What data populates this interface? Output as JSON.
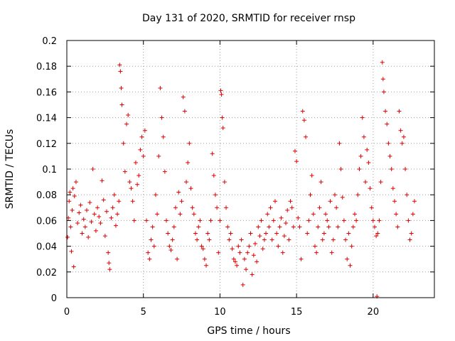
{
  "chart_data": {
    "type": "scatter",
    "title": "Day 131 of 2020, SRMTID for receiver rnsp",
    "xlabel": "GPS time / hours",
    "ylabel": "SRMTID / TECUs",
    "xlim": [
      0,
      24
    ],
    "ylim": [
      0,
      0.2
    ],
    "xticks": [
      0,
      5,
      10,
      15,
      20
    ],
    "xtick_labels": [
      "0",
      "5",
      "10",
      "15",
      "20"
    ],
    "yticks": [
      0,
      0.02,
      0.04,
      0.06,
      0.08,
      0.1,
      0.12,
      0.14,
      0.16,
      0.18,
      0.2
    ],
    "ytick_labels": [
      "0",
      "0.02",
      "0.04",
      "0.06",
      "0.08",
      "0.1",
      "0.12",
      "0.14",
      "0.16",
      "0.18",
      "0.2"
    ],
    "grid": true,
    "marker": "+",
    "color": "#e00000",
    "series": [
      {
        "name": "SRMTID",
        "points": [
          [
            0.05,
            0.047
          ],
          [
            0.1,
            0.062
          ],
          [
            0.15,
            0.075
          ],
          [
            0.2,
            0.082
          ],
          [
            0.25,
            0.055
          ],
          [
            0.3,
            0.036
          ],
          [
            0.35,
            0.068
          ],
          [
            0.4,
            0.085
          ],
          [
            0.45,
            0.024
          ],
          [
            0.5,
            0.079
          ],
          [
            0.6,
            0.09
          ],
          [
            0.7,
            0.058
          ],
          [
            0.8,
            0.066
          ],
          [
            0.9,
            0.072
          ],
          [
            1.0,
            0.05
          ],
          [
            1.1,
            0.061
          ],
          [
            1.2,
            0.055
          ],
          [
            1.3,
            0.068
          ],
          [
            1.4,
            0.047
          ],
          [
            1.5,
            0.074
          ],
          [
            1.6,
            0.059
          ],
          [
            1.7,
            0.1
          ],
          [
            1.8,
            0.065
          ],
          [
            1.9,
            0.052
          ],
          [
            2.0,
            0.07
          ],
          [
            2.1,
            0.063
          ],
          [
            2.2,
            0.058
          ],
          [
            2.3,
            0.091
          ],
          [
            2.4,
            0.076
          ],
          [
            2.5,
            0.048
          ],
          [
            2.6,
            0.067
          ],
          [
            2.7,
            0.035
          ],
          [
            2.75,
            0.027
          ],
          [
            2.8,
            0.022
          ],
          [
            2.9,
            0.062
          ],
          [
            3.0,
            0.07
          ],
          [
            3.1,
            0.08
          ],
          [
            3.2,
            0.056
          ],
          [
            3.3,
            0.065
          ],
          [
            3.4,
            0.075
          ],
          [
            3.45,
            0.181
          ],
          [
            3.5,
            0.176
          ],
          [
            3.55,
            0.163
          ],
          [
            3.6,
            0.15
          ],
          [
            3.7,
            0.12
          ],
          [
            3.8,
            0.098
          ],
          [
            3.9,
            0.135
          ],
          [
            4.0,
            0.142
          ],
          [
            4.1,
            0.09
          ],
          [
            4.2,
            0.085
          ],
          [
            4.3,
            0.075
          ],
          [
            4.4,
            0.06
          ],
          [
            4.5,
            0.105
          ],
          [
            4.6,
            0.088
          ],
          [
            4.7,
            0.095
          ],
          [
            4.8,
            0.115
          ],
          [
            4.9,
            0.125
          ],
          [
            5.0,
            0.11
          ],
          [
            5.1,
            0.13
          ],
          [
            5.2,
            0.06
          ],
          [
            5.3,
            0.035
          ],
          [
            5.4,
            0.03
          ],
          [
            5.5,
            0.045
          ],
          [
            5.6,
            0.055
          ],
          [
            5.7,
            0.04
          ],
          [
            5.8,
            0.08
          ],
          [
            5.9,
            0.065
          ],
          [
            6.0,
            0.11
          ],
          [
            6.1,
            0.163
          ],
          [
            6.2,
            0.14
          ],
          [
            6.3,
            0.125
          ],
          [
            6.4,
            0.098
          ],
          [
            6.5,
            0.06
          ],
          [
            6.6,
            0.05
          ],
          [
            6.7,
            0.04
          ],
          [
            6.8,
            0.037
          ],
          [
            6.9,
            0.045
          ],
          [
            7.0,
            0.055
          ],
          [
            7.1,
            0.07
          ],
          [
            7.2,
            0.03
          ],
          [
            7.3,
            0.082
          ],
          [
            7.4,
            0.065
          ],
          [
            7.5,
            0.075
          ],
          [
            7.6,
            0.156
          ],
          [
            7.7,
            0.145
          ],
          [
            7.8,
            0.09
          ],
          [
            7.9,
            0.105
          ],
          [
            8.0,
            0.12
          ],
          [
            8.1,
            0.085
          ],
          [
            8.2,
            0.07
          ],
          [
            8.3,
            0.065
          ],
          [
            8.4,
            0.05
          ],
          [
            8.5,
            0.045
          ],
          [
            8.6,
            0.055
          ],
          [
            8.7,
            0.06
          ],
          [
            8.8,
            0.04
          ],
          [
            8.9,
            0.038
          ],
          [
            9.0,
            0.03
          ],
          [
            9.1,
            0.025
          ],
          [
            9.2,
            0.05
          ],
          [
            9.3,
            0.045
          ],
          [
            9.4,
            0.06
          ],
          [
            9.5,
            0.112
          ],
          [
            9.6,
            0.095
          ],
          [
            9.7,
            0.08
          ],
          [
            9.8,
            0.07
          ],
          [
            9.9,
            0.035
          ],
          [
            10.0,
            0.06
          ],
          [
            10.05,
            0.161
          ],
          [
            10.1,
            0.158
          ],
          [
            10.15,
            0.14
          ],
          [
            10.2,
            0.132
          ],
          [
            10.3,
            0.09
          ],
          [
            10.4,
            0.07
          ],
          [
            10.5,
            0.055
          ],
          [
            10.6,
            0.045
          ],
          [
            10.7,
            0.05
          ],
          [
            10.8,
            0.038
          ],
          [
            10.9,
            0.03
          ],
          [
            11.0,
            0.028
          ],
          [
            11.1,
            0.025
          ],
          [
            11.2,
            0.04
          ],
          [
            11.3,
            0.035
          ],
          [
            11.4,
            0.045
          ],
          [
            11.5,
            0.01
          ],
          [
            11.6,
            0.03
          ],
          [
            11.7,
            0.022
          ],
          [
            11.8,
            0.035
          ],
          [
            11.9,
            0.04
          ],
          [
            12.0,
            0.05
          ],
          [
            12.1,
            0.018
          ],
          [
            12.2,
            0.033
          ],
          [
            12.3,
            0.042
          ],
          [
            12.4,
            0.028
          ],
          [
            12.5,
            0.055
          ],
          [
            12.6,
            0.048
          ],
          [
            12.7,
            0.06
          ],
          [
            12.8,
            0.038
          ],
          [
            12.9,
            0.045
          ],
          [
            13.0,
            0.05
          ],
          [
            13.1,
            0.065
          ],
          [
            13.2,
            0.055
          ],
          [
            13.3,
            0.07
          ],
          [
            13.4,
            0.045
          ],
          [
            13.5,
            0.06
          ],
          [
            13.6,
            0.075
          ],
          [
            13.7,
            0.05
          ],
          [
            13.8,
            0.04
          ],
          [
            13.9,
            0.055
          ],
          [
            14.0,
            0.062
          ],
          [
            14.1,
            0.035
          ],
          [
            14.2,
            0.048
          ],
          [
            14.3,
            0.058
          ],
          [
            14.4,
            0.068
          ],
          [
            14.5,
            0.045
          ],
          [
            14.6,
            0.075
          ],
          [
            14.7,
            0.07
          ],
          [
            14.8,
            0.055
          ],
          [
            14.9,
            0.114
          ],
          [
            15.0,
            0.106
          ],
          [
            15.1,
            0.062
          ],
          [
            15.2,
            0.055
          ],
          [
            15.3,
            0.03
          ],
          [
            15.4,
            0.145
          ],
          [
            15.5,
            0.138
          ],
          [
            15.6,
            0.125
          ],
          [
            15.7,
            0.05
          ],
          [
            15.8,
            0.06
          ],
          [
            15.9,
            0.08
          ],
          [
            16.0,
            0.095
          ],
          [
            16.1,
            0.065
          ],
          [
            16.2,
            0.04
          ],
          [
            16.3,
            0.035
          ],
          [
            16.4,
            0.055
          ],
          [
            16.5,
            0.07
          ],
          [
            16.6,
            0.09
          ],
          [
            16.7,
            0.045
          ],
          [
            16.8,
            0.05
          ],
          [
            16.9,
            0.065
          ],
          [
            17.0,
            0.06
          ],
          [
            17.1,
            0.055
          ],
          [
            17.2,
            0.075
          ],
          [
            17.3,
            0.035
          ],
          [
            17.4,
            0.045
          ],
          [
            17.5,
            0.08
          ],
          [
            17.6,
            0.07
          ],
          [
            17.7,
            0.055
          ],
          [
            17.8,
            0.12
          ],
          [
            17.9,
            0.1
          ],
          [
            18.0,
            0.078
          ],
          [
            18.1,
            0.06
          ],
          [
            18.2,
            0.045
          ],
          [
            18.3,
            0.03
          ],
          [
            18.4,
            0.05
          ],
          [
            18.5,
            0.025
          ],
          [
            18.6,
            0.04
          ],
          [
            18.7,
            0.055
          ],
          [
            18.8,
            0.065
          ],
          [
            18.9,
            0.06
          ],
          [
            19.0,
            0.08
          ],
          [
            19.1,
            0.1
          ],
          [
            19.2,
            0.11
          ],
          [
            19.3,
            0.14
          ],
          [
            19.4,
            0.125
          ],
          [
            19.5,
            0.09
          ],
          [
            19.6,
            0.115
          ],
          [
            19.7,
            0.105
          ],
          [
            19.8,
            0.085
          ],
          [
            19.9,
            0.07
          ],
          [
            20.0,
            0.06
          ],
          [
            20.1,
            0.055
          ],
          [
            20.2,
            0.048
          ],
          [
            20.25,
            0.001
          ],
          [
            20.3,
            0.05
          ],
          [
            20.4,
            0.06
          ],
          [
            20.5,
            0.09
          ],
          [
            20.6,
            0.183
          ],
          [
            20.65,
            0.17
          ],
          [
            20.7,
            0.16
          ],
          [
            20.8,
            0.145
          ],
          [
            20.9,
            0.135
          ],
          [
            21.0,
            0.12
          ],
          [
            21.1,
            0.11
          ],
          [
            21.2,
            0.1
          ],
          [
            21.3,
            0.085
          ],
          [
            21.4,
            0.075
          ],
          [
            21.5,
            0.065
          ],
          [
            21.6,
            0.055
          ],
          [
            21.7,
            0.145
          ],
          [
            21.8,
            0.13
          ],
          [
            21.9,
            0.12
          ],
          [
            22.0,
            0.125
          ],
          [
            22.1,
            0.1
          ],
          [
            22.2,
            0.08
          ],
          [
            22.3,
            0.06
          ],
          [
            22.4,
            0.045
          ],
          [
            22.5,
            0.05
          ],
          [
            22.6,
            0.065
          ],
          [
            22.7,
            0.075
          ]
        ]
      }
    ]
  }
}
